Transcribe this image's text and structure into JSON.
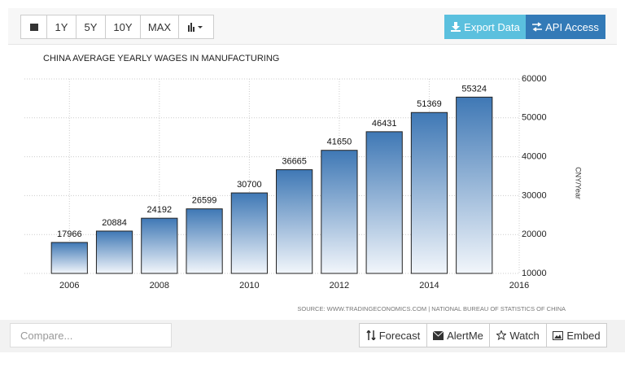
{
  "toolbar": {
    "ranges": [
      "1Y",
      "5Y",
      "10Y",
      "MAX"
    ],
    "export": "Export Data",
    "api": "API Access"
  },
  "chart_data": {
    "type": "bar",
    "title": "CHINA AVERAGE YEARLY WAGES IN MANUFACTURING",
    "x": [
      2006,
      2007,
      2008,
      2009,
      2010,
      2011,
      2012,
      2013,
      2014,
      2015
    ],
    "values": [
      17966,
      20884,
      24192,
      26599,
      30700,
      36665,
      41650,
      46431,
      51369,
      55324
    ],
    "color": "#3f78b5",
    "xlim": [
      2005,
      2016
    ],
    "xticks": [
      2006,
      2008,
      2010,
      2012,
      2014,
      2016
    ],
    "ylim": [
      10000,
      60000
    ],
    "yticks": [
      10000,
      20000,
      30000,
      40000,
      50000,
      60000
    ],
    "y_label": "CNY/Year",
    "grid": true,
    "source": "SOURCE: WWW.TRADINGECONOMICS.COM | NATIONAL BUREAU OF STATISTICS OF CHINA"
  },
  "footer": {
    "compare_placeholder": "Compare...",
    "buttons": [
      "Forecast",
      "AlertMe",
      "Watch",
      "Embed"
    ]
  }
}
